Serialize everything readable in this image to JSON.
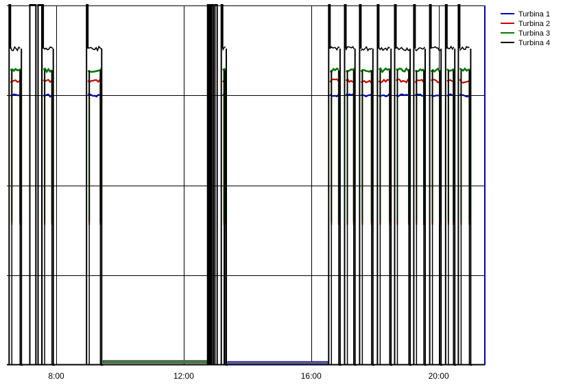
{
  "chart_data": {
    "type": "line",
    "x_ticks": [
      "8:00",
      "12:00",
      "16:00",
      "20:00"
    ],
    "x_tick_hours": [
      8,
      12,
      16,
      20
    ],
    "x_range_hours": [
      6.45,
      21.45
    ],
    "y_range": [
      0,
      100
    ],
    "y_grid": [
      25,
      50,
      75,
      100
    ],
    "grid": true,
    "legend_position": "top-right",
    "series": [
      {
        "name": "Turbina 1",
        "color": "#0000b4",
        "level": 75
      },
      {
        "name": "Turbina 2",
        "color": "#cc0000",
        "level": 79
      },
      {
        "name": "Turbina 3",
        "color": "#007700",
        "level": 82
      },
      {
        "name": "Turbina 4",
        "color": "#000000",
        "level": 88
      }
    ],
    "pulses": [
      {
        "start": 6.52,
        "end": 6.95,
        "color_ends": true
      },
      {
        "start": 7.17,
        "end": 7.36,
        "spike": true
      },
      {
        "start": 7.43,
        "end": 7.55,
        "spike": true
      },
      {
        "start": 7.55,
        "end": 7.95,
        "color_ends": true
      },
      {
        "start": 8.95,
        "end": 9.47,
        "color_ends": true
      },
      {
        "start": 12.75,
        "end": 12.79,
        "spike": true
      },
      {
        "start": 12.82,
        "end": 12.85,
        "spike": true
      },
      {
        "start": 12.88,
        "end": 12.93,
        "spike": true
      },
      {
        "start": 12.98,
        "end": 13.05,
        "spike": true
      },
      {
        "start": 13.18,
        "end": 13.38,
        "color_ends": true
      },
      {
        "start": 16.55,
        "end": 16.95,
        "color_ends": true
      },
      {
        "start": 17.05,
        "end": 17.42,
        "color_ends": true
      },
      {
        "start": 17.52,
        "end": 17.98,
        "color_ends": true
      },
      {
        "start": 18.08,
        "end": 18.55,
        "color_ends": true
      },
      {
        "start": 18.62,
        "end": 19.15,
        "color_ends": true
      },
      {
        "start": 19.22,
        "end": 19.62,
        "color_ends": true
      },
      {
        "start": 19.72,
        "end": 20.12,
        "color_ends": true
      },
      {
        "start": 20.22,
        "end": 20.55,
        "color_ends": true
      },
      {
        "start": 20.62,
        "end": 21.05,
        "color_ends": true
      }
    ],
    "baseline_bars": [
      {
        "start": 9.47,
        "end": 12.75,
        "level": 0.7,
        "color": "#007700"
      },
      {
        "start": 13.38,
        "end": 16.55,
        "level": 0.4,
        "color": "#0000b4"
      }
    ],
    "end_marker": {
      "hour": 21.45,
      "color": "#0000b4"
    }
  }
}
